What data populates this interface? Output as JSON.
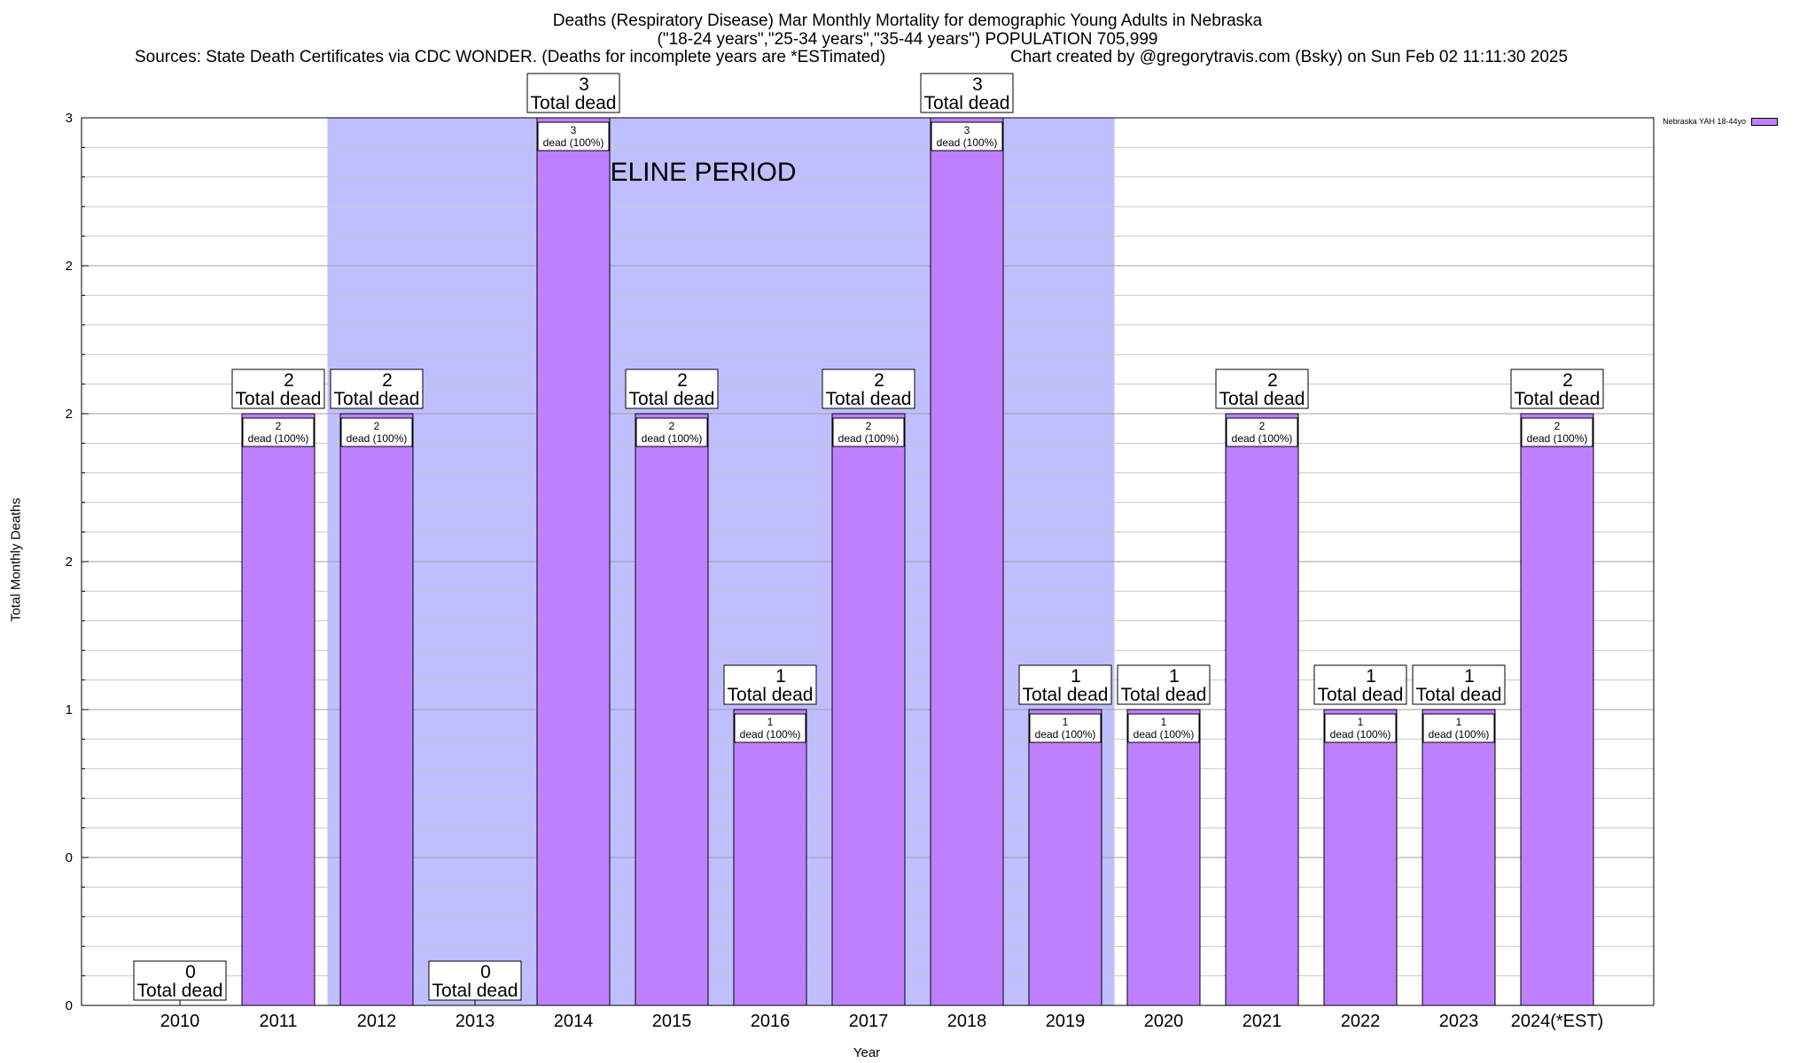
{
  "chart_data": {
    "type": "bar",
    "title_lines": [
      "Deaths (Respiratory Disease) Mar Monthly Mortality for demographic Young Adults in Nebraska",
      "(\"18-24 years\",\"25-34 years\",\"35-44 years\") POPULATION 705,999"
    ],
    "source_text": "Sources: State Death Certificates via CDC WONDER. (Deaths for incomplete years are *ESTimated)",
    "credit_text": "Chart created by @gregorytravis.com (Bsky) on Sun Feb 02 11:11:30 2025",
    "xlabel": "Year",
    "ylabel": "Total Monthly Deaths",
    "legend": "Nebraska YAH 18-44yo",
    "series_color": "#bf80ff",
    "baseline_color": "#bfbfff",
    "baseline_label": "BASELINE PERIOD",
    "baseline_range": [
      "2012",
      "2019"
    ],
    "categories": [
      "2010",
      "2011",
      "2012",
      "2013",
      "2014",
      "2015",
      "2016",
      "2017",
      "2018",
      "2019",
      "2020",
      "2021",
      "2022",
      "2023",
      "2024(*EST)"
    ],
    "values": [
      0,
      2,
      2,
      0,
      3,
      2,
      1,
      2,
      3,
      1,
      1,
      2,
      1,
      1,
      2
    ],
    "total_label_suffix": "Total dead",
    "inner_label_suffix": "dead (100%)",
    "ylim": [
      0,
      3
    ],
    "ytick_values": [
      0,
      0.5,
      1,
      1.5,
      2,
      2.5,
      3
    ],
    "ytick_labels": [
      "0",
      "0",
      "1",
      "2",
      "2",
      "2",
      "3"
    ],
    "grid": true
  }
}
